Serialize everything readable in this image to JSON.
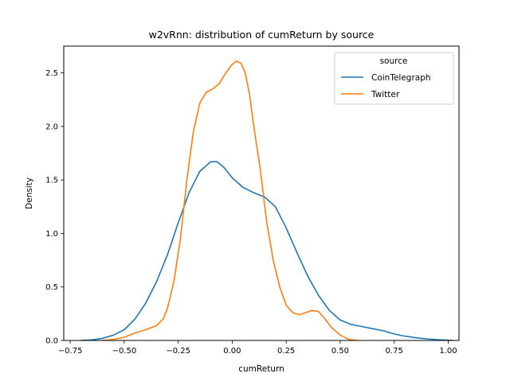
{
  "chart_data": {
    "type": "line",
    "title": "w2vRnn: distribution of cumReturn by source",
    "xlabel": "cumReturn",
    "ylabel": "Density",
    "xlim": [
      -0.78,
      1.05
    ],
    "ylim": [
      0,
      2.75
    ],
    "x_ticks": [
      -0.75,
      -0.5,
      -0.25,
      0.0,
      0.25,
      0.5,
      0.75,
      1.0
    ],
    "x_tick_labels": [
      "−0.75",
      "−0.50",
      "−0.25",
      "0.00",
      "0.25",
      "0.50",
      "0.75",
      "1.00"
    ],
    "y_ticks": [
      0.0,
      0.5,
      1.0,
      1.5,
      2.0,
      2.5
    ],
    "y_tick_labels": [
      "0.0",
      "0.5",
      "1.0",
      "1.5",
      "2.0",
      "2.5"
    ],
    "grid": false,
    "legend": {
      "title": "source",
      "placement": "top-right"
    },
    "series": [
      {
        "name": "CoinTelegraph",
        "color": "#1f77b4",
        "points": [
          [
            -0.7,
            0.0
          ],
          [
            -0.65,
            0.005
          ],
          [
            -0.6,
            0.02
          ],
          [
            -0.55,
            0.05
          ],
          [
            -0.5,
            0.1
          ],
          [
            -0.45,
            0.2
          ],
          [
            -0.4,
            0.35
          ],
          [
            -0.35,
            0.55
          ],
          [
            -0.3,
            0.8
          ],
          [
            -0.25,
            1.1
          ],
          [
            -0.2,
            1.38
          ],
          [
            -0.15,
            1.58
          ],
          [
            -0.1,
            1.67
          ],
          [
            -0.07,
            1.67
          ],
          [
            -0.04,
            1.62
          ],
          [
            0.0,
            1.52
          ],
          [
            0.05,
            1.43
          ],
          [
            0.1,
            1.38
          ],
          [
            0.15,
            1.34
          ],
          [
            0.2,
            1.25
          ],
          [
            0.25,
            1.05
          ],
          [
            0.3,
            0.82
          ],
          [
            0.35,
            0.6
          ],
          [
            0.4,
            0.42
          ],
          [
            0.45,
            0.28
          ],
          [
            0.5,
            0.19
          ],
          [
            0.55,
            0.15
          ],
          [
            0.6,
            0.13
          ],
          [
            0.65,
            0.11
          ],
          [
            0.7,
            0.09
          ],
          [
            0.75,
            0.06
          ],
          [
            0.8,
            0.04
          ],
          [
            0.85,
            0.025
          ],
          [
            0.9,
            0.015
          ],
          [
            0.95,
            0.007
          ],
          [
            1.0,
            0.002
          ],
          [
            1.02,
            0.0
          ]
        ]
      },
      {
        "name": "Twitter",
        "color": "#ff7f0e",
        "points": [
          [
            -0.6,
            0.0
          ],
          [
            -0.55,
            0.01
          ],
          [
            -0.5,
            0.03
          ],
          [
            -0.45,
            0.07
          ],
          [
            -0.4,
            0.1
          ],
          [
            -0.35,
            0.14
          ],
          [
            -0.32,
            0.2
          ],
          [
            -0.3,
            0.3
          ],
          [
            -0.27,
            0.55
          ],
          [
            -0.24,
            0.95
          ],
          [
            -0.21,
            1.5
          ],
          [
            -0.18,
            1.95
          ],
          [
            -0.15,
            2.22
          ],
          [
            -0.12,
            2.32
          ],
          [
            -0.09,
            2.35
          ],
          [
            -0.06,
            2.4
          ],
          [
            -0.03,
            2.5
          ],
          [
            0.0,
            2.58
          ],
          [
            0.02,
            2.61
          ],
          [
            0.04,
            2.59
          ],
          [
            0.06,
            2.5
          ],
          [
            0.08,
            2.3
          ],
          [
            0.1,
            2.0
          ],
          [
            0.13,
            1.6
          ],
          [
            0.16,
            1.1
          ],
          [
            0.19,
            0.75
          ],
          [
            0.22,
            0.5
          ],
          [
            0.25,
            0.33
          ],
          [
            0.28,
            0.26
          ],
          [
            0.31,
            0.24
          ],
          [
            0.34,
            0.26
          ],
          [
            0.37,
            0.28
          ],
          [
            0.4,
            0.27
          ],
          [
            0.43,
            0.2
          ],
          [
            0.46,
            0.12
          ],
          [
            0.5,
            0.05
          ],
          [
            0.54,
            0.01
          ],
          [
            0.58,
            0.0
          ]
        ]
      }
    ]
  }
}
